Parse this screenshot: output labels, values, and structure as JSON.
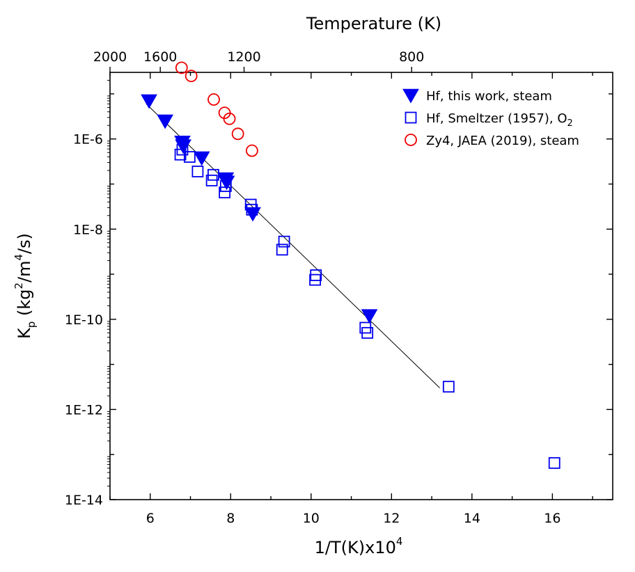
{
  "chart_data": {
    "type": "scatter",
    "x_axis": {
      "label_main": "1/T(K)x10",
      "label_sup": "4",
      "range": [
        5,
        17.5
      ],
      "ticks": [
        6,
        8,
        10,
        12,
        14,
        16
      ],
      "tick_labels": [
        "6",
        "8",
        "10",
        "12",
        "14",
        "16"
      ]
    },
    "top_axis": {
      "label": "Temperature (K)",
      "ticks": [
        2000,
        1600,
        1200,
        800
      ],
      "tick_labels": [
        "2000",
        "1600",
        "1200",
        "800"
      ]
    },
    "y_axis": {
      "label_main": "K",
      "label_sub": "p",
      "label_units_a": " (kg",
      "label_units_b": "2",
      "label_units_c": "/m",
      "label_units_d": "4",
      "label_units_e": "/s)",
      "scale": "log",
      "range": [
        1e-14,
        3e-05
      ],
      "ticks": [
        1e-06,
        1e-08,
        1e-10,
        1e-12,
        1e-14
      ],
      "tick_labels": [
        "1E-6",
        "1E-8",
        "1E-10",
        "1E-12",
        "1E-14"
      ]
    },
    "grid": false,
    "legend_position": "top-right",
    "series": [
      {
        "name": "Hf, this work, steam",
        "marker": "triangle-down-filled",
        "color": "#0000ee",
        "points": [
          [
            5.97,
            7e-06
          ],
          [
            6.37,
            2.5e-06
          ],
          [
            6.8,
            8.5e-07
          ],
          [
            6.82,
            7e-07
          ],
          [
            7.28,
            3.8e-07
          ],
          [
            7.88,
            1.3e-07
          ],
          [
            7.9,
            1.1e-07
          ],
          [
            8.55,
            2.2e-08
          ],
          [
            11.45,
            1.2e-10
          ]
        ]
      },
      {
        "name": "Hf, Smeltzer (1957), O",
        "name_sub": "2",
        "marker": "square-open",
        "color": "#0000ee",
        "points": [
          [
            6.75,
            4.5e-07
          ],
          [
            6.8,
            5.8e-07
          ],
          [
            6.98,
            4e-07
          ],
          [
            7.18,
            1.9e-07
          ],
          [
            7.53,
            1.2e-07
          ],
          [
            7.57,
            1.6e-07
          ],
          [
            7.85,
            6.5e-08
          ],
          [
            7.88,
            9e-08
          ],
          [
            8.5,
            3.5e-08
          ],
          [
            8.53,
            2.7e-08
          ],
          [
            9.28,
            3.5e-09
          ],
          [
            9.33,
            5.3e-09
          ],
          [
            10.1,
            7.5e-10
          ],
          [
            10.12,
            9.5e-10
          ],
          [
            11.35,
            6.5e-11
          ],
          [
            11.4,
            5e-11
          ],
          [
            13.42,
            3.2e-12
          ],
          [
            16.05,
            6.5e-14
          ]
        ]
      },
      {
        "name": "Zy4, JAEA (2019), steam",
        "marker": "circle-open",
        "color": "#ee0000",
        "points": [
          [
            6.78,
            3.8e-05
          ],
          [
            7.02,
            2.5e-05
          ],
          [
            7.58,
            7.5e-06
          ],
          [
            7.85,
            3.8e-06
          ],
          [
            7.97,
            2.8e-06
          ],
          [
            8.18,
            1.3e-06
          ],
          [
            8.53,
            5.5e-07
          ]
        ]
      }
    ],
    "fit_line": {
      "points": [
        [
          5.9,
          6e-06
        ],
        [
          13.2,
          3e-12
        ]
      ],
      "color": "#000000"
    }
  }
}
